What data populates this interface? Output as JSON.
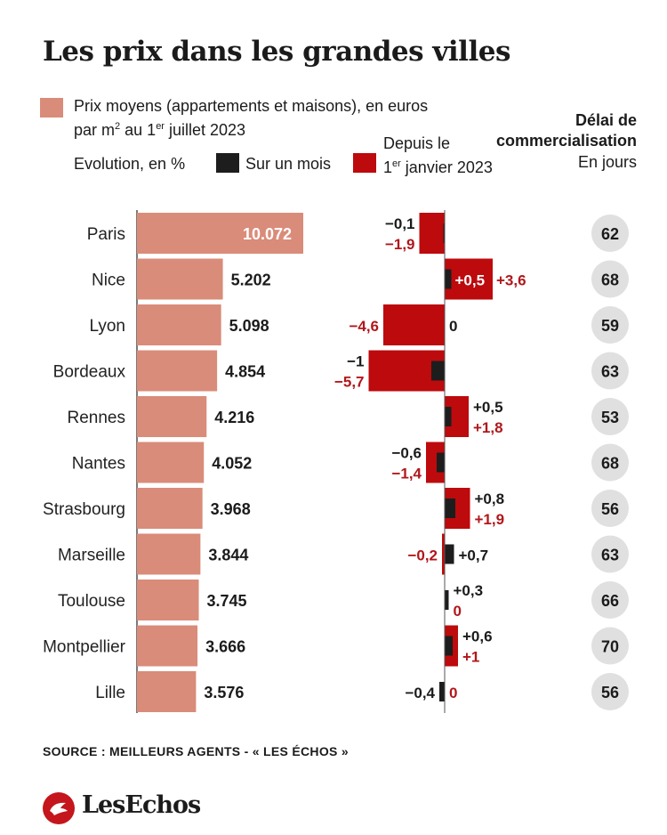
{
  "title": "Les prix dans les grandes villes",
  "legend": {
    "price_line1": "Prix moyens (appartements et maisons), en euros",
    "price_line2_a": "par m",
    "price_line2_sup1": "2",
    "price_line2_b": " au 1",
    "price_line2_sup2": "er",
    "price_line2_c": " juillet 2023",
    "evolution_label": "Evolution, en %",
    "month_label": "Sur un mois",
    "year_line1": "Depuis le",
    "year_line2_a": "1",
    "year_line2_sup": "er",
    "year_line2_b": " janvier 2023"
  },
  "delai": {
    "title_line1": "Délai de",
    "title_line2": "commercialisation",
    "unit": "En jours"
  },
  "colors": {
    "price": "#d98c79",
    "month": "#1d1d1d",
    "year": "#bd0a0d",
    "year_text": "#b1171b",
    "circle": "#e0e0e0",
    "price_label_inside": "#ffffff"
  },
  "chart_data": {
    "type": "bar",
    "categories": [
      "Paris",
      "Nice",
      "Lyon",
      "Bordeaux",
      "Rennes",
      "Nantes",
      "Strasbourg",
      "Marseille",
      "Toulouse",
      "Montpellier",
      "Lille"
    ],
    "series": [
      {
        "name": "Prix moyens (appartements et maisons), en euros par m2 au 1er juillet 2023",
        "values": [
          10072,
          5202,
          5098,
          4854,
          4216,
          4052,
          3968,
          3844,
          3745,
          3666,
          3576
        ],
        "labels": [
          "10.072",
          "5.202",
          "5.098",
          "4.854",
          "4.216",
          "4.052",
          "3.968",
          "3.844",
          "3.745",
          "3.666",
          "3.576"
        ]
      },
      {
        "name": "Sur un mois",
        "values": [
          -0.1,
          0.5,
          0,
          -1,
          0.5,
          -0.6,
          0.8,
          0.7,
          0.3,
          0.6,
          -0.4
        ],
        "labels": [
          "−0,1",
          "+0,5",
          "0",
          "−1",
          "+0,5",
          "−0,6",
          "+0,8",
          "+0,7",
          "+0,3",
          "+0,6",
          "−0,4"
        ]
      },
      {
        "name": "Depuis le 1er janvier 2023",
        "values": [
          -1.9,
          3.6,
          -4.6,
          -5.7,
          1.8,
          -1.4,
          1.9,
          -0.2,
          0,
          1,
          0
        ],
        "labels": [
          "−1,9",
          "+3,6",
          "−4,6",
          "−5,7",
          "+1,8",
          "−1,4",
          "+1,9",
          "−0,2",
          "0",
          "+1",
          "0"
        ]
      },
      {
        "name": "Délai de commercialisation, en jours",
        "values": [
          62,
          68,
          59,
          63,
          53,
          68,
          56,
          63,
          66,
          70,
          56
        ],
        "labels": [
          "62",
          "68",
          "59",
          "63",
          "53",
          "68",
          "56",
          "63",
          "66",
          "70",
          "56"
        ]
      }
    ]
  },
  "source": "SOURCE : MEILLEURS AGENTS - « LES ÉCHOS »",
  "logo_text": "LesEchos"
}
